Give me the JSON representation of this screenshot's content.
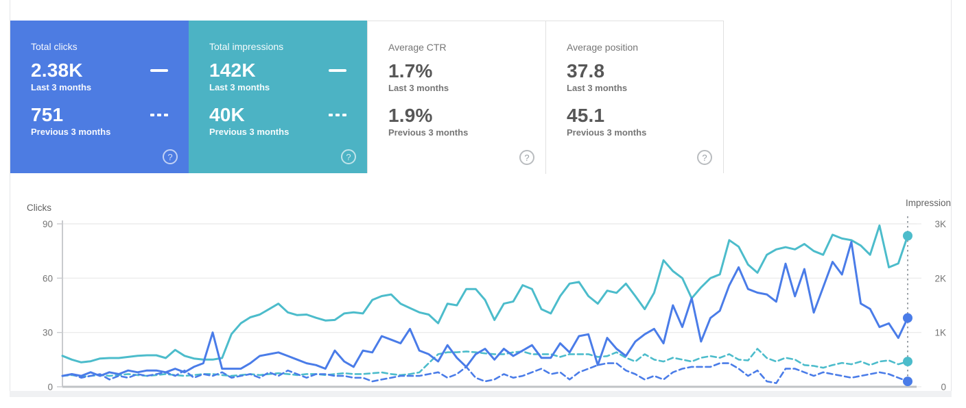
{
  "cards": [
    {
      "title": "Total clicks",
      "value_last": "2.38K",
      "label_last": "Last 3 months",
      "value_prev": "751",
      "label_prev": "Previous 3 months",
      "bg_color": "#4d7ce2",
      "style": "blue",
      "has_series_markers": true
    },
    {
      "title": "Total impressions",
      "value_last": "142K",
      "label_last": "Last 3 months",
      "value_prev": "40K",
      "label_prev": "Previous 3 months",
      "bg_color": "#4cb3c4",
      "style": "teal",
      "has_series_markers": true
    },
    {
      "title": "Average CTR",
      "value_last": "1.7%",
      "label_last": "Last 3 months",
      "value_prev": "1.9%",
      "label_prev": "Previous 3 months",
      "bg_color": "#ffffff",
      "style": "white",
      "has_series_markers": false
    },
    {
      "title": "Average position",
      "value_last": "37.8",
      "label_last": "Last 3 months",
      "value_prev": "45.1",
      "label_prev": "Previous 3 months",
      "bg_color": "#ffffff",
      "style": "white",
      "has_series_markers": false
    }
  ],
  "icons": {
    "help_glyph": "?",
    "solid_series_marker": "—",
    "dashed_series_marker": "- - -"
  },
  "colors": {
    "clicks_blue": "#4a7ce8",
    "impressions_teal": "#4cbccb",
    "grid_line": "#ececec",
    "axis_line": "#c9cbce",
    "tick_text": "#757575",
    "hover_line": "#9aa0a6"
  },
  "chart_data": {
    "type": "line",
    "x": {
      "type": "index",
      "count": 91
    },
    "left_axis": {
      "title": "Clicks",
      "tick_labels": [
        "90",
        "60",
        "30",
        "0"
      ],
      "tick_values": [
        90,
        60,
        30,
        0
      ],
      "range": [
        0,
        90
      ]
    },
    "right_axis": {
      "title": "Impression",
      "tick_labels": [
        "3K",
        "2K",
        "1K",
        "0"
      ],
      "tick_values": [
        3000,
        2000,
        1000,
        0
      ],
      "range": [
        0,
        3000
      ]
    },
    "grid": true,
    "series": [
      {
        "name": "Impressions (previous 3 months)",
        "axis": "right",
        "style": "dashed",
        "color": "#4cbccb",
        "values": [
          200,
          215,
          185,
          200,
          215,
          200,
          215,
          235,
          215,
          200,
          215,
          235,
          215,
          200,
          215,
          235,
          235,
          215,
          200,
          215,
          235,
          215,
          235,
          250,
          235,
          215,
          235,
          235,
          215,
          235,
          250,
          235,
          235,
          250,
          265,
          235,
          215,
          235,
          265,
          435,
          600,
          635,
          635,
          650,
          635,
          615,
          600,
          600,
          635,
          650,
          600,
          600,
          600,
          550,
          600,
          600,
          600,
          550,
          565,
          635,
          535,
          465,
          600,
          500,
          465,
          535,
          500,
          465,
          535,
          565,
          535,
          600,
          500,
          485,
          700,
          530,
          465,
          535,
          500,
          400,
          385,
          350,
          400,
          440,
          415,
          465,
          400,
          465,
          485,
          415,
          465
        ]
      },
      {
        "name": "Clicks (previous 3 months)",
        "axis": "left",
        "style": "dashed",
        "color": "#4a7ce8",
        "values": [
          6,
          7,
          5,
          6,
          7,
          4,
          6,
          5,
          7,
          6,
          7,
          8,
          6,
          9,
          5,
          7,
          6,
          8,
          5,
          6,
          7,
          5,
          8,
          6,
          9,
          7,
          5,
          7,
          7,
          6,
          6,
          5,
          5,
          3,
          4,
          5,
          6,
          6,
          6,
          7,
          8,
          5,
          7,
          11,
          5,
          3,
          4,
          7,
          5,
          6,
          8,
          10,
          7,
          8,
          4,
          8,
          10,
          12,
          13,
          13,
          9,
          7,
          4,
          6,
          4,
          8,
          10,
          11,
          11,
          11,
          13,
          13,
          10,
          6,
          9,
          3,
          2,
          10,
          10,
          8,
          6,
          8,
          7,
          6,
          5,
          6,
          7,
          8,
          7,
          5,
          3
        ]
      },
      {
        "name": "Impressions (last 3 months)",
        "axis": "right",
        "style": "solid",
        "color": "#4cbccb",
        "values": [
          570,
          500,
          450,
          470,
          520,
          530,
          530,
          550,
          570,
          580,
          580,
          530,
          680,
          570,
          520,
          500,
          500,
          530,
          970,
          1170,
          1280,
          1330,
          1430,
          1530,
          1370,
          1320,
          1330,
          1270,
          1220,
          1230,
          1350,
          1370,
          1350,
          1600,
          1670,
          1700,
          1530,
          1450,
          1370,
          1330,
          1170,
          1530,
          1500,
          1800,
          1800,
          1600,
          1230,
          1530,
          1570,
          1870,
          1800,
          1430,
          1350,
          1670,
          1900,
          1930,
          1670,
          1530,
          1770,
          1730,
          1900,
          1670,
          1430,
          1730,
          2330,
          2130,
          2000,
          1630,
          1830,
          2000,
          2070,
          2700,
          2580,
          2250,
          2100,
          2430,
          2530,
          2570,
          2530,
          2630,
          2500,
          2430,
          2800,
          2730,
          2700,
          2600,
          2430,
          2970,
          2200,
          2270,
          2780
        ]
      },
      {
        "name": "Clicks (last 3 months)",
        "axis": "left",
        "style": "solid",
        "color": "#4a7ce8",
        "values": [
          6,
          7,
          6,
          8,
          6,
          8,
          7,
          9,
          8,
          9,
          9,
          8,
          10,
          8,
          11,
          13,
          30,
          10,
          10,
          10,
          13,
          17,
          18,
          19,
          17,
          15,
          13,
          12,
          10,
          20,
          14,
          11,
          20,
          19,
          28,
          26,
          24,
          32,
          20,
          18,
          14,
          23,
          16,
          11,
          18,
          21,
          15,
          21,
          17,
          20,
          23,
          16,
          16,
          24,
          19,
          28,
          29,
          12,
          27,
          21,
          17,
          25,
          29,
          32,
          24,
          45,
          33,
          49,
          25,
          38,
          42,
          56,
          66,
          54,
          52,
          51,
          47,
          68,
          50,
          65,
          41,
          55,
          69,
          62,
          80,
          46,
          43,
          33,
          35,
          27,
          38
        ]
      }
    ],
    "hover_marker": {
      "x_index": 90,
      "points": [
        {
          "series": "Impressions (last 3 months)",
          "value": 2780
        },
        {
          "series": "Clicks (last 3 months)",
          "value": 38
        },
        {
          "series": "Impressions (previous 3 months)",
          "value": 465
        },
        {
          "series": "Clicks (previous 3 months)",
          "value": 3
        }
      ]
    }
  }
}
